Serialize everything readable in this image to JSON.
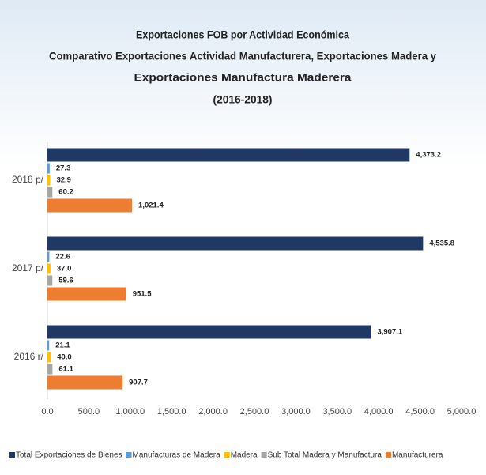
{
  "chart_data": {
    "type": "hbar",
    "title": [
      "Exportaciones FOB por Actividad Económica",
      "Comparativo  Exportaciones Actividad  Manufacturera, Exportaciones Madera y",
      "Exportaciones Manufactura Maderera",
      "(2016-2018)"
    ],
    "categories": [
      "2018 p/",
      "2017 p/",
      "2016 r/"
    ],
    "series": [
      {
        "name": "Total Exportaciones de Bienes",
        "color": "#203864",
        "values": [
          4373.2,
          4535.8,
          3907.1
        ],
        "value_labels": [
          "4,373.2",
          "4,535.8",
          "3,907.1"
        ]
      },
      {
        "name": "Manufacturas de Madera",
        "color": "#5b9bd5",
        "values": [
          27.3,
          22.6,
          21.1
        ],
        "value_labels": [
          "27.3",
          "22.6",
          "21.1"
        ]
      },
      {
        "name": "Madera",
        "color": "#ffc000",
        "values": [
          32.9,
          37.0,
          40.0
        ],
        "value_labels": [
          "32.9",
          "37.0",
          "40.0"
        ]
      },
      {
        "name": "Sub Total Madera y Manufactura",
        "color": "#a5a5a5",
        "values": [
          60.2,
          59.6,
          61.1
        ],
        "value_labels": [
          "60.2",
          "59.6",
          "61.1"
        ]
      },
      {
        "name": "Manufacturera",
        "color": "#ed7d31",
        "values": [
          1021.4,
          951.5,
          907.7
        ],
        "value_labels": [
          "1,021.4",
          "951.5",
          "907.7"
        ]
      }
    ],
    "xlim": [
      0,
      5000
    ],
    "xticks": [
      {
        "value": 0,
        "label": "0.0"
      },
      {
        "value": 500,
        "label": "500.0"
      },
      {
        "value": 1000,
        "label": "1,000.0"
      },
      {
        "value": 1500,
        "label": "1,500.0"
      },
      {
        "value": 2000,
        "label": "2,000.0"
      },
      {
        "value": 2500,
        "label": "2,500.0"
      },
      {
        "value": 3000,
        "label": "3,000.0"
      },
      {
        "value": 3500,
        "label": "3,500.0"
      },
      {
        "value": 4000,
        "label": "4,000.0"
      },
      {
        "value": 4500,
        "label": "4,500.0"
      },
      {
        "value": 5000,
        "label": "5,000.0"
      }
    ],
    "legend": "bottom"
  }
}
